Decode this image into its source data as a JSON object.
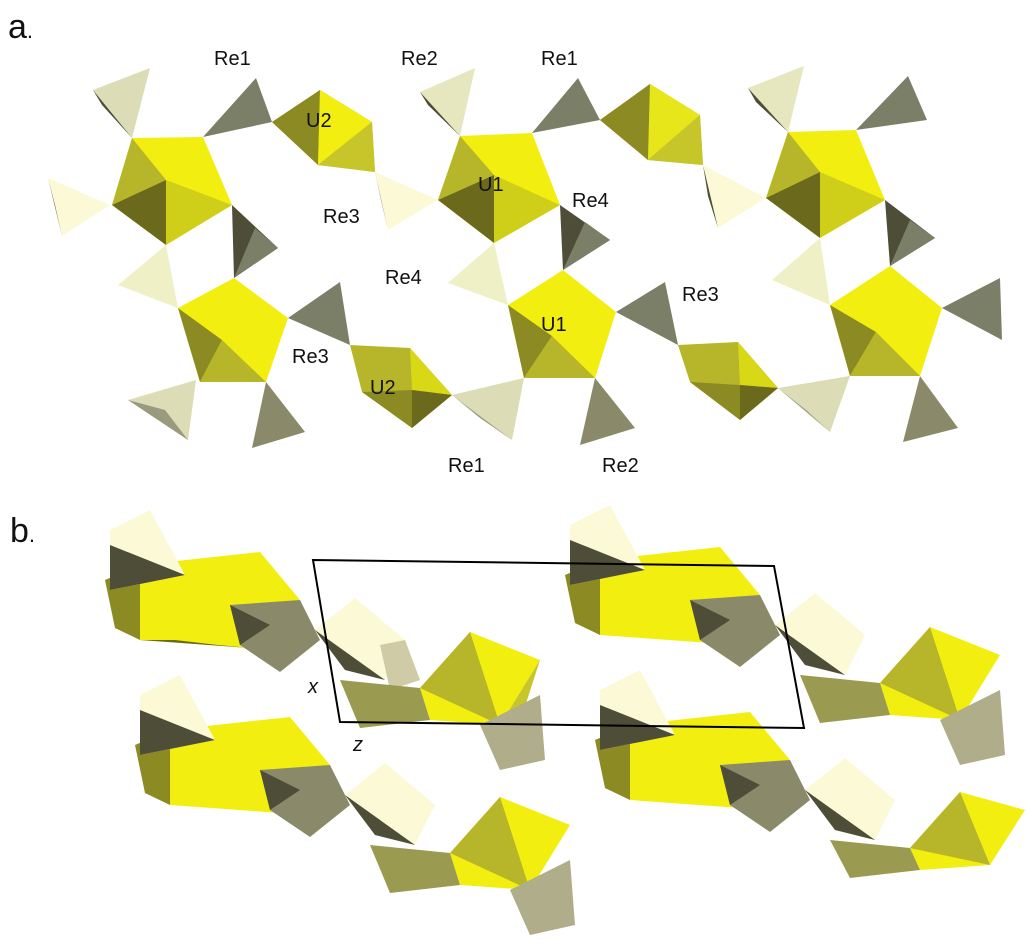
{
  "panels": {
    "a": {
      "letter": "a",
      "suffix": "."
    },
    "b": {
      "letter": "b",
      "suffix": "."
    }
  },
  "labels_a": [
    "Re1",
    "Re2",
    "Re1",
    "U2",
    "U1",
    "Re4",
    "Re3",
    "Re4",
    "Re3",
    "U1",
    "Re3",
    "U2",
    "Re1",
    "Re2"
  ],
  "axes_b": {
    "x": "x",
    "z": "z"
  },
  "colors": {
    "uranium_polyhedra": [
      "#f2ee10",
      "#d9d817",
      "#b7b62a",
      "#8c8a22",
      "#6b6a1c"
    ],
    "rhenium_tetrahedra": [
      "#fcfad6",
      "#e6e6bf",
      "#cfcba7",
      "#9a9a7e",
      "#7b7f67",
      "#4d4d38"
    ],
    "unit_cell": "#000000"
  }
}
